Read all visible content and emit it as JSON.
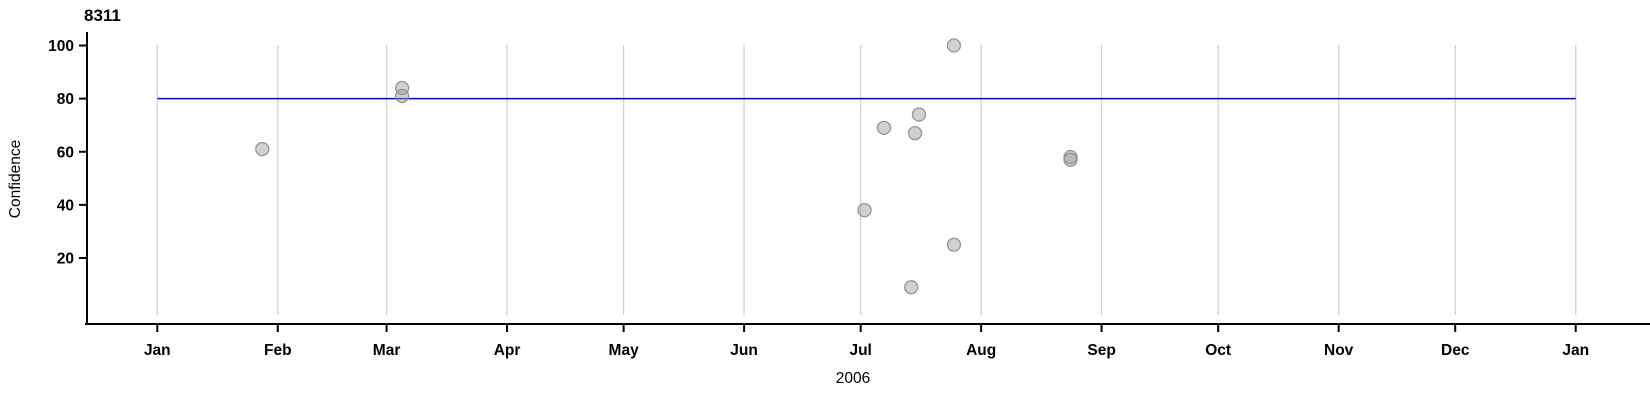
{
  "chart_data": {
    "type": "scatter",
    "title": "8311",
    "xlabel": "2006",
    "ylabel": "Confidence",
    "x_axis": {
      "year": 2006,
      "tick_labels": [
        "Jan",
        "Feb",
        "Mar",
        "Apr",
        "May",
        "Jun",
        "Jul",
        "Aug",
        "Sep",
        "Oct",
        "Nov",
        "Dec",
        "Jan"
      ],
      "range": [
        "2006-01-01",
        "2007-01-01"
      ],
      "grid": true
    },
    "y_axis": {
      "ticks": [
        20,
        40,
        60,
        80,
        100
      ],
      "range": [
        0,
        105
      ],
      "grid": false
    },
    "reference_line": {
      "y": 80
    },
    "points": [
      {
        "date": "2006-01-28",
        "value": 61
      },
      {
        "date": "2006-03-05",
        "value": 84
      },
      {
        "date": "2006-03-05",
        "value": 81
      },
      {
        "date": "2006-07-02",
        "value": 38
      },
      {
        "date": "2006-07-07",
        "value": 69
      },
      {
        "date": "2006-07-14",
        "value": 9
      },
      {
        "date": "2006-07-15",
        "value": 67
      },
      {
        "date": "2006-07-16",
        "value": 74
      },
      {
        "date": "2006-07-25",
        "value": 100
      },
      {
        "date": "2006-07-25",
        "value": 25
      },
      {
        "date": "2006-08-24",
        "value": 58
      },
      {
        "date": "2006-08-24",
        "value": 57
      }
    ],
    "colors": {
      "reference_line": "#0000DD",
      "point_fill": "#9a9a9a",
      "point_stroke": "#8c8c8c",
      "gridline": "#d3d3d3",
      "axis": "#000000"
    },
    "legend": null
  }
}
